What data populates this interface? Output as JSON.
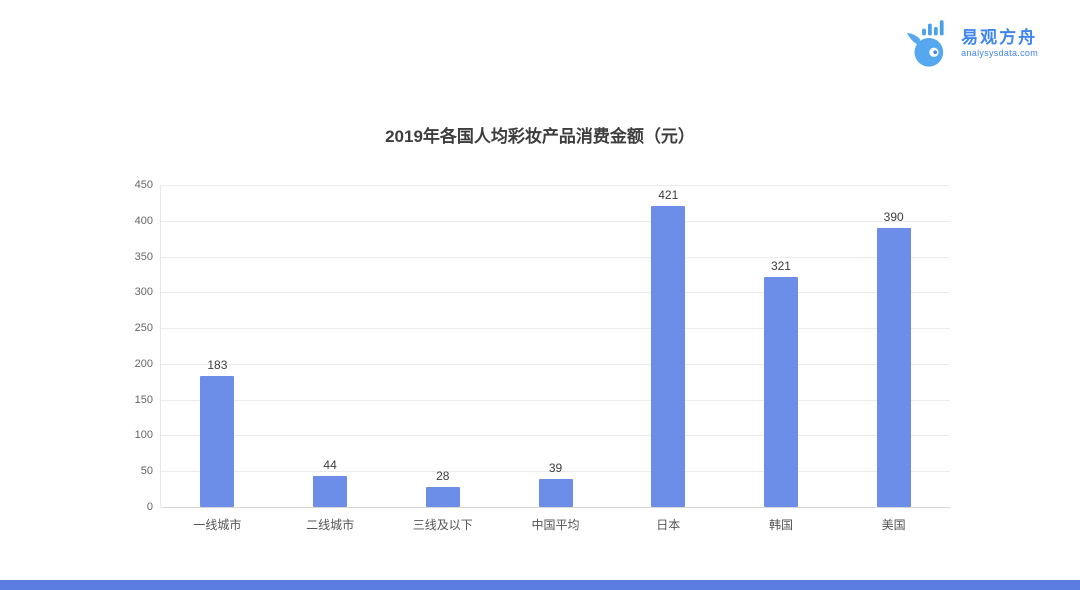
{
  "logo": {
    "name": "易观方舟",
    "domain": "analysysdata.com",
    "color": "#3f86ee"
  },
  "footer_bar_color": "#5b7ce0",
  "chart_data": {
    "type": "bar",
    "title": "2019年各国人均彩妆产品消费金额（元）",
    "categories": [
      "一线城市",
      "二线城市",
      "三线及以下",
      "中国平均",
      "日本",
      "韩国",
      "美国"
    ],
    "values": [
      183,
      44,
      28,
      39,
      421,
      321,
      390
    ],
    "xlabel": "",
    "ylabel": "",
    "ylim": [
      0,
      450
    ],
    "yticks": [
      450,
      400,
      350,
      300,
      250,
      200,
      150,
      100,
      50,
      0
    ],
    "grid": true,
    "legend": "none",
    "bar_color": "#6d8ee8"
  }
}
